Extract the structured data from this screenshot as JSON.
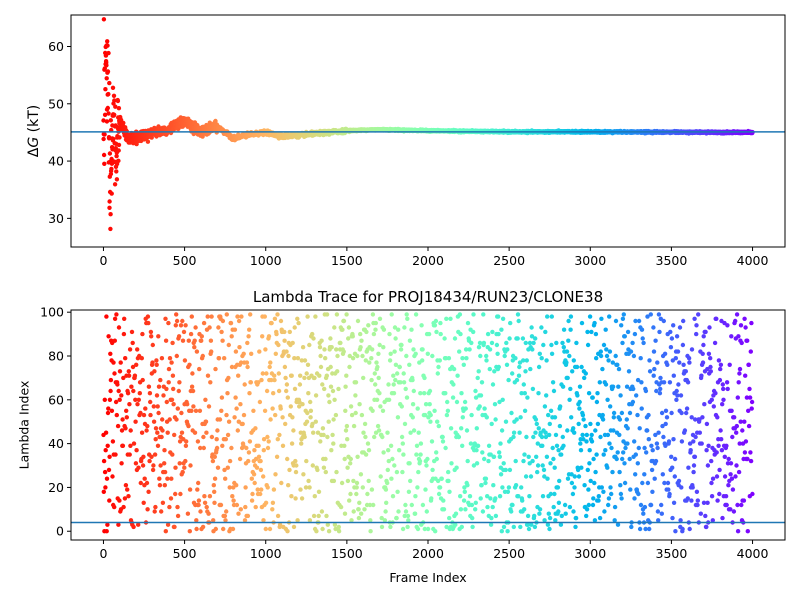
{
  "chart_data": [
    {
      "type": "scatter",
      "title": "",
      "xlabel": "",
      "ylabel": "ΔG (kT)",
      "ylabel_parts": {
        "delta": "Δ",
        "var": "G",
        "unit": " (kT)"
      },
      "xlim": [
        -200,
        4200
      ],
      "ylim": [
        25,
        65.5
      ],
      "xticks": [
        0,
        500,
        1000,
        1500,
        2000,
        2500,
        3000,
        3500,
        4000
      ],
      "yticks": [
        30,
        40,
        50,
        60
      ],
      "reference_line": {
        "y": 45.1,
        "color": "#1f77b4"
      },
      "colormap": "rainbow (red at frame 0 → violet at frame 4000)",
      "series": [
        {
          "n_points": 4000,
          "x_range": [
            0,
            4000
          ],
          "running_estimate": [
            {
              "x": 0,
              "y": 50
            },
            {
              "x": 20,
              "y": 58
            },
            {
              "x": 40,
              "y": 35
            },
            {
              "x": 60,
              "y": 46
            },
            {
              "x": 80,
              "y": 42
            },
            {
              "x": 100,
              "y": 47
            },
            {
              "x": 150,
              "y": 44
            },
            {
              "x": 200,
              "y": 44
            },
            {
              "x": 300,
              "y": 45
            },
            {
              "x": 400,
              "y": 45.5
            },
            {
              "x": 500,
              "y": 47
            },
            {
              "x": 600,
              "y": 45
            },
            {
              "x": 700,
              "y": 46
            },
            {
              "x": 800,
              "y": 44
            },
            {
              "x": 900,
              "y": 44.6
            },
            {
              "x": 1000,
              "y": 45
            },
            {
              "x": 1100,
              "y": 44.3
            },
            {
              "x": 1200,
              "y": 44.5
            },
            {
              "x": 1500,
              "y": 45.3
            },
            {
              "x": 1700,
              "y": 45.5
            },
            {
              "x": 2000,
              "y": 45.3
            },
            {
              "x": 2500,
              "y": 45.1
            },
            {
              "x": 3000,
              "y": 45.1
            },
            {
              "x": 4000,
              "y": 45.0
            }
          ]
        }
      ]
    },
    {
      "type": "scatter",
      "title": "Lambda Trace for PROJ18434/RUN23/CLONE38",
      "xlabel": "Frame Index",
      "ylabel": "Lambda Index",
      "xlim": [
        -200,
        4200
      ],
      "ylim": [
        -4,
        101
      ],
      "xticks": [
        0,
        500,
        1000,
        1500,
        2000,
        2500,
        3000,
        3500,
        4000
      ],
      "yticks": [
        0,
        20,
        40,
        60,
        80,
        100
      ],
      "reference_line": {
        "y": 4,
        "color": "#1f77b4"
      },
      "colormap": "rainbow (red at frame 0 → violet at frame 4000)",
      "series": [
        {
          "n_points": 4000,
          "x_range": [
            0,
            4000
          ],
          "y_range": [
            0,
            99
          ],
          "distribution": "approximately uniform random lambda index per frame"
        }
      ]
    }
  ]
}
